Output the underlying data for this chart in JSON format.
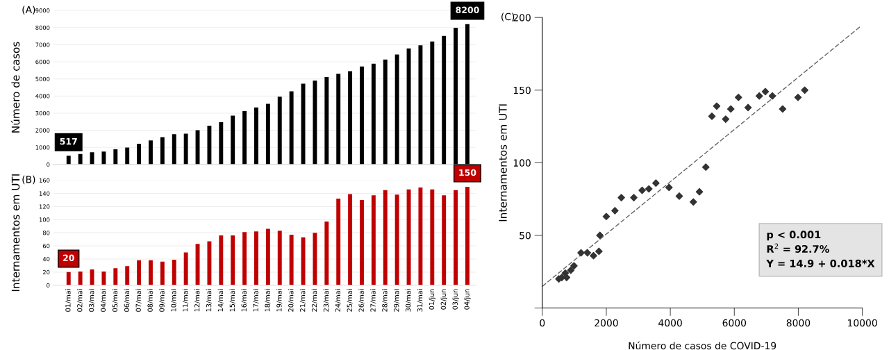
{
  "chart_data": [
    {
      "type": "bar",
      "ylabel": "Número de casos",
      "annotations": [
        "(A)"
      ],
      "categories": [
        null,
        null,
        null,
        null,
        null,
        null,
        null,
        null,
        null,
        null,
        null,
        null,
        null,
        null,
        null,
        null,
        null,
        null,
        null,
        null,
        null,
        null,
        null,
        null,
        null,
        null,
        null,
        null,
        null,
        null,
        null,
        null,
        null,
        null,
        null
      ],
      "values": [
        517,
        610,
        720,
        760,
        890,
        990,
        1210,
        1410,
        1600,
        1770,
        1800,
        2000,
        2270,
        2470,
        2860,
        3120,
        3330,
        3550,
        3960,
        4280,
        4720,
        4910,
        5110,
        5300,
        5450,
        5730,
        5890,
        6130,
        6430,
        6780,
        6970,
        7190,
        7510,
        7990,
        8200
      ],
      "value_labels": [
        "517",
        null,
        null,
        null,
        null,
        null,
        null,
        null,
        null,
        null,
        null,
        null,
        null,
        null,
        null,
        null,
        null,
        null,
        null,
        null,
        null,
        null,
        null,
        null,
        null,
        null,
        null,
        null,
        null,
        null,
        null,
        null,
        null,
        null,
        "8200"
      ],
      "color": "#000000",
      "ylim": [
        0,
        9000
      ],
      "yticks": [
        0,
        1000,
        2000,
        3000,
        4000,
        5000,
        6000,
        7000,
        8000,
        9000
      ],
      "grid": "y",
      "tick_labels": "y"
    },
    {
      "type": "bar",
      "ylabel": "Internamentos em UTI",
      "annotations": [
        "(B)"
      ],
      "categories": [
        "01/mai",
        "02/mai",
        "03/mai",
        "04/mai",
        "05/mai",
        "06/mai",
        "07/mai",
        "08/mai",
        "09/mai",
        "10/mai",
        "11/mai",
        "12/mai",
        "13/mai",
        "14/mai",
        "15/mai",
        "16/mai",
        "17/mai",
        "18/mai",
        "19/mai",
        "20/mai",
        "21/mai",
        "22/mai",
        "23/mai",
        "24/mai",
        "25/mai",
        "26/mai",
        "27/mai",
        "28/mai",
        "29/mai",
        "30/mai",
        "31/mai",
        "01/jun",
        "02/jun",
        "03/jun",
        "04/jun"
      ],
      "values": [
        20,
        21,
        24,
        21,
        26,
        29,
        38,
        38,
        36,
        39,
        50,
        63,
        67,
        76,
        76,
        81,
        82,
        86,
        83,
        77,
        73,
        80,
        97,
        132,
        139,
        130,
        137,
        145,
        138,
        146,
        149,
        146,
        137,
        145,
        150
      ],
      "value_labels": [
        "20",
        null,
        null,
        null,
        null,
        null,
        null,
        null,
        null,
        null,
        null,
        null,
        null,
        null,
        null,
        null,
        null,
        null,
        null,
        null,
        null,
        null,
        null,
        null,
        null,
        null,
        null,
        null,
        null,
        null,
        null,
        null,
        null,
        null,
        "150"
      ],
      "color": "#c00000",
      "ylim": [
        0,
        160
      ],
      "yticks": [
        0,
        20,
        40,
        60,
        80,
        100,
        120,
        140,
        160
      ],
      "grid": "y"
    },
    {
      "type": "scatter",
      "xlabel": "Número de casos de COVID-19",
      "ylabel": "Internamentos em UTI",
      "annotations": [
        "(C)",
        "p < 0.001",
        "R$^{2}$ = 92.7%",
        "Y = 14.9 + 0.018*X"
      ],
      "grid": false,
      "series": [
        {
          "type": "scatter",
          "marker": "diamond",
          "color": "#333333",
          "x": [
            517,
            610,
            720,
            760,
            890,
            990,
            1210,
            1410,
            1600,
            1770,
            1800,
            2000,
            2270,
            2470,
            2860,
            3120,
            3330,
            3550,
            3960,
            4280,
            4720,
            4910,
            5110,
            5300,
            5450,
            5730,
            5890,
            6130,
            6430,
            6780,
            6970,
            7190,
            7510,
            7990,
            8200
          ],
          "values": [
            20,
            21,
            24,
            21,
            26,
            29,
            38,
            38,
            36,
            39,
            50,
            63,
            67,
            76,
            76,
            81,
            82,
            86,
            83,
            77,
            73,
            80,
            97,
            132,
            139,
            130,
            137,
            145,
            138,
            146,
            149,
            146,
            137,
            145,
            150
          ]
        },
        {
          "type": "line",
          "color": "#666666",
          "line_style": "dashed",
          "x": [
            0,
            9950
          ],
          "values": [
            14.9,
            194
          ]
        }
      ],
      "xlim": [
        0,
        10000
      ],
      "xticks": [
        {
          "value": 0,
          "label": "0"
        },
        2000,
        4000,
        6000,
        8000,
        10000
      ],
      "ylim": [
        0,
        200
      ],
      "yticks": [
        {
          "value": 0,
          "label": null
        },
        50,
        100,
        150,
        200
      ]
    }
  ]
}
